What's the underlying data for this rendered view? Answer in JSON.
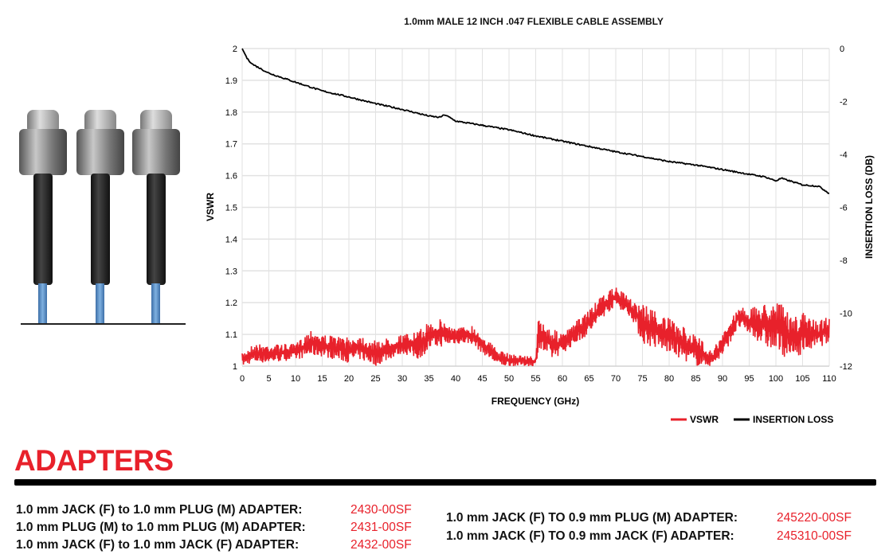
{
  "chart_data": {
    "type": "line",
    "title": "1.0mm MALE 12 INCH .047 FLEXIBLE CABLE ASSEMBLY",
    "xlabel": "FREQUENCY (GHz)",
    "ylabel": "VSWR",
    "y2label": "INSERTION LOSS (DB)",
    "xlim": [
      0,
      110
    ],
    "ylim": [
      1,
      2
    ],
    "y2lim": [
      -12,
      0
    ],
    "xticks": [
      "0",
      "5",
      "10",
      "15",
      "20",
      "25",
      "30",
      "35",
      "40",
      "45",
      "50",
      "55",
      "60",
      "65",
      "70",
      "75",
      "80",
      "85",
      "90",
      "95",
      "100",
      "105",
      "110"
    ],
    "yticks": [
      "1",
      "1.1",
      "1.2",
      "1.3",
      "1.4",
      "1.5",
      "1.6",
      "1.7",
      "1.8",
      "1.9",
      "2"
    ],
    "y2ticks": [
      "-12",
      "-10",
      "-8",
      "-6",
      "-4",
      "-2",
      "0"
    ],
    "grid": true,
    "legend": "bottom-right",
    "series": [
      {
        "name": "VSWR",
        "color": "#e8212b",
        "axis": "left",
        "x": [
          0,
          2,
          5,
          10,
          13,
          15,
          20,
          22,
          25,
          30,
          33,
          35,
          37,
          40,
          43,
          45,
          48,
          50,
          55,
          55.5,
          58,
          60,
          65,
          68,
          70,
          73,
          75,
          80,
          85,
          88,
          90,
          93,
          95,
          98,
          100,
          103,
          105,
          108,
          110
        ],
        "low": [
          1.0,
          1.01,
          1.01,
          1.02,
          1.03,
          1.03,
          1.01,
          1.02,
          1.0,
          1.04,
          1.02,
          1.05,
          1.06,
          1.07,
          1.07,
          1.04,
          1.0,
          1.0,
          1.0,
          1.05,
          1.02,
          1.04,
          1.1,
          1.16,
          1.19,
          1.15,
          1.07,
          1.04,
          1.0,
          1.0,
          1.03,
          1.12,
          1.1,
          1.06,
          1.04,
          1.02,
          1.04,
          1.06,
          1.07
        ],
        "high": [
          1.04,
          1.07,
          1.07,
          1.07,
          1.12,
          1.1,
          1.09,
          1.1,
          1.08,
          1.1,
          1.11,
          1.14,
          1.15,
          1.12,
          1.13,
          1.1,
          1.05,
          1.04,
          1.03,
          1.15,
          1.12,
          1.1,
          1.18,
          1.23,
          1.25,
          1.21,
          1.2,
          1.15,
          1.1,
          1.05,
          1.1,
          1.19,
          1.18,
          1.2,
          1.22,
          1.15,
          1.17,
          1.14,
          1.17
        ]
      },
      {
        "name": "INSERTION LOSS",
        "color": "#000000",
        "axis": "right",
        "x": [
          0,
          1,
          2,
          5,
          10,
          15,
          20,
          25,
          30,
          35,
          37,
          38,
          40,
          45,
          50,
          55,
          60,
          65,
          70,
          75,
          80,
          85,
          90,
          95,
          98,
          100,
          101,
          105,
          108,
          110
        ],
        "values": [
          0,
          -0.4,
          -0.6,
          -0.93,
          -1.27,
          -1.6,
          -1.83,
          -2.08,
          -2.3,
          -2.55,
          -2.6,
          -2.5,
          -2.74,
          -2.9,
          -3.07,
          -3.3,
          -3.5,
          -3.7,
          -3.9,
          -4.08,
          -4.27,
          -4.4,
          -4.57,
          -4.75,
          -4.85,
          -5.0,
          -4.9,
          -5.15,
          -5.2,
          -5.47
        ]
      }
    ]
  },
  "section": {
    "heading": "ADAPTERS",
    "left_items": [
      {
        "label": "1.0 mm JACK (F) to 1.0 mm PLUG (M) ADAPTER:",
        "part": "2430-00SF"
      },
      {
        "label": "1.0 mm PLUG (M) to 1.0 mm PLUG (M) ADAPTER:",
        "part": "2431-00SF"
      },
      {
        "label": "1.0 mm JACK (F) to 1.0 mm JACK (F) ADAPTER:",
        "part": "2432-00SF"
      }
    ],
    "right_items": [
      {
        "label": "1.0 mm JACK (F) TO 0.9 mm PLUG (M) ADAPTER:",
        "part": "245220-00SF"
      },
      {
        "label": "1.0 mm JACK (F) TO 0.9 mm JACK (F) ADAPTER:",
        "part": "245310-00SF"
      }
    ]
  }
}
